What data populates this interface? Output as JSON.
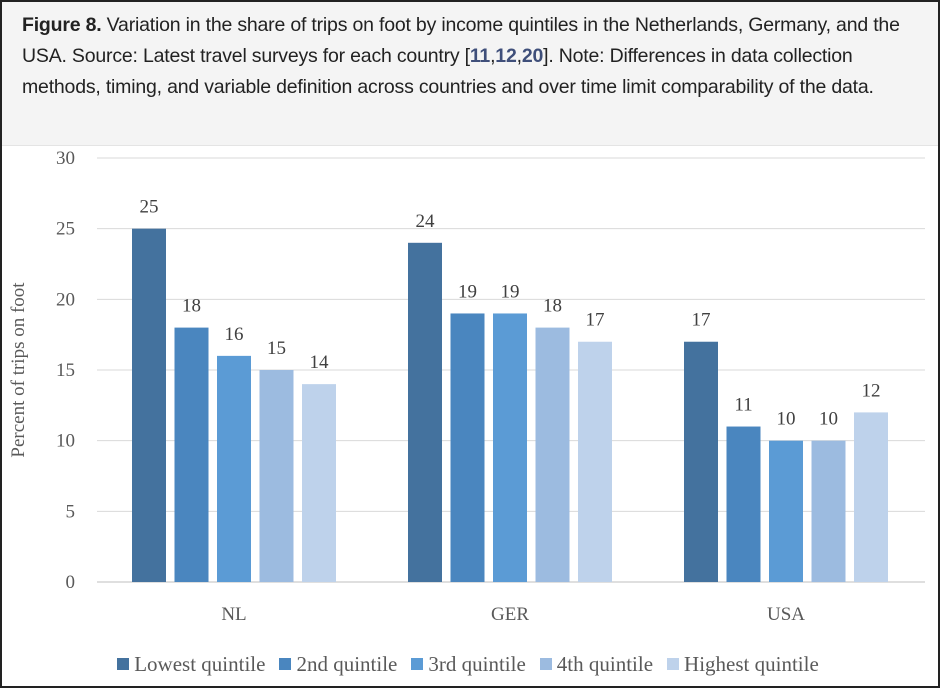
{
  "caption": {
    "label": "Figure 8.",
    "text_before": " Variation in the share of trips on foot by income quintiles in the Netherlands, Germany, and the USA. Source: Latest travel surveys for each country [",
    "refs": [
      "11",
      "12",
      "20"
    ],
    "text_after": "]. Note: Differences in data collection methods, timing, and variable definition across countries and over time limit comparability of the data."
  },
  "chart_data": {
    "type": "bar",
    "title": "",
    "xlabel": "",
    "ylabel": "Percent of trips on foot",
    "ylim": [
      0,
      30
    ],
    "yticks": [
      0,
      5,
      10,
      15,
      20,
      25,
      30
    ],
    "grid": true,
    "legend_position": "bottom",
    "categories": [
      "NL",
      "GER",
      "USA"
    ],
    "series": [
      {
        "name": "Lowest quintile",
        "color": "#44729e",
        "values": [
          25,
          24,
          17
        ]
      },
      {
        "name": "2nd quintile",
        "color": "#4a86bf",
        "values": [
          18,
          19,
          11
        ]
      },
      {
        "name": "3rd quintile",
        "color": "#5b9bd5",
        "values": [
          16,
          19,
          10
        ]
      },
      {
        "name": "4th quintile",
        "color": "#9cbbe0",
        "values": [
          15,
          18,
          10
        ]
      },
      {
        "name": "Highest quintile",
        "color": "#bed2eb",
        "values": [
          14,
          17,
          12
        ]
      }
    ]
  }
}
